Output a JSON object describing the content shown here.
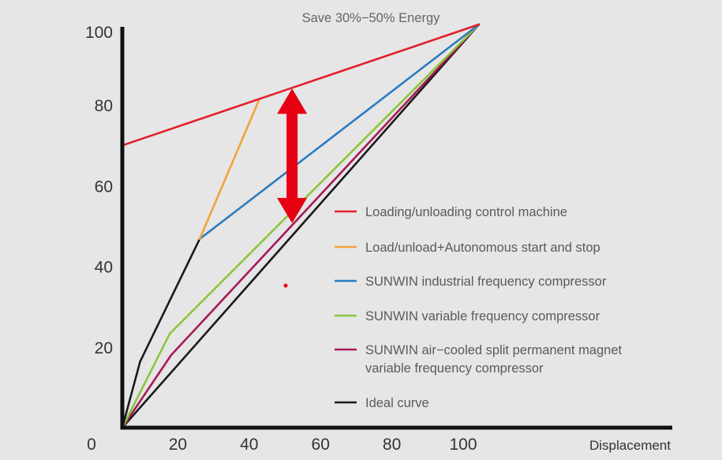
{
  "chart_data": {
    "type": "line",
    "title": "Save 30%−50% Energy",
    "xlabel": "Displacement",
    "ylabel": "",
    "xlim": [
      0,
      100
    ],
    "ylim": [
      0,
      100
    ],
    "grid": false,
    "legend_position": "right",
    "x_ticks": [
      "0",
      "20",
      "40",
      "60",
      "80",
      "100"
    ],
    "y_ticks": [
      "20",
      "40",
      "60",
      "80",
      "100"
    ],
    "series": [
      {
        "name": "Loading/unloading control machine",
        "color": "#e3202b",
        "points": [
          [
            0,
            70
          ],
          [
            100,
            100
          ]
        ]
      },
      {
        "name": "Load/unload+Autonomous start and stop",
        "color": "#f2a33a",
        "points": [
          [
            0,
            0
          ],
          [
            5,
            16.4
          ],
          [
            21.7,
            46.8
          ],
          [
            38.3,
            81.2
          ]
        ],
        "segment_colors": [
          "#1a1a1a",
          "#1a1a1a",
          "#f2a33a"
        ]
      },
      {
        "name": "SUNWIN industrial frequency compressor",
        "color": "#2a7bc0",
        "points": [
          [
            21.7,
            46.8
          ],
          [
            100,
            100
          ]
        ]
      },
      {
        "name": "SUNWIN variable frequency compressor",
        "color": "#8cc63e",
        "points": [
          [
            0,
            0
          ],
          [
            13.3,
            23.3
          ],
          [
            100,
            100
          ]
        ]
      },
      {
        "name": "SUNWIN air−cooled split permanent magnet variable frequency compressor",
        "name_lines": [
          "SUNWIN air−cooled split permanent magnet",
          "variable frequency compressor"
        ],
        "color": "#a8185a",
        "points": [
          [
            0,
            0
          ],
          [
            13.7,
            18
          ],
          [
            100,
            100
          ]
        ]
      },
      {
        "name": "Ideal curve",
        "color": "#1a1a1a",
        "points": [
          [
            0,
            0
          ],
          [
            100,
            100
          ]
        ]
      }
    ],
    "annotations": [
      {
        "type": "double-arrow",
        "color": "#e60012",
        "x": 47.6,
        "y_from": 50.7,
        "y_to": 84.1,
        "label": "Save 30%−50% Energy"
      }
    ]
  }
}
